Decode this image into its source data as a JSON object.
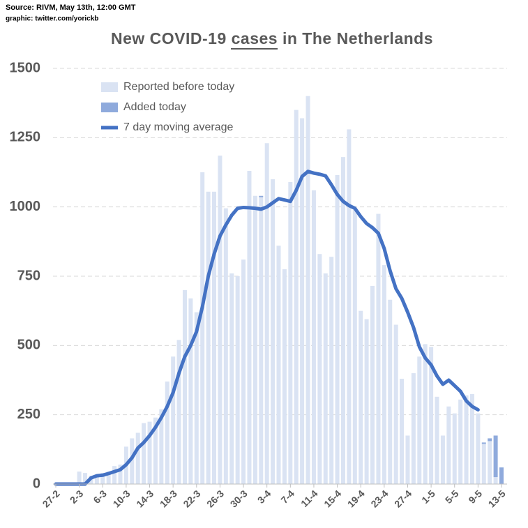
{
  "chart_data": {
    "type": "bar",
    "stacked": true,
    "source": "Source: RIVM, May 13th, 12:00 GMT",
    "credit": "graphic: twitter.com/yorickb",
    "title": "New COVID-19 cases in The Netherlands",
    "categories": [
      "27-2",
      null,
      null,
      null,
      "2-3",
      null,
      null,
      null,
      "6-3",
      null,
      null,
      null,
      "10-3",
      null,
      null,
      null,
      "14-3",
      null,
      null,
      null,
      "18-3",
      null,
      null,
      null,
      "22-3",
      null,
      null,
      null,
      "26-3",
      null,
      null,
      null,
      "30-3",
      null,
      null,
      null,
      "3-4",
      null,
      null,
      null,
      "7-4",
      null,
      null,
      null,
      "11-4",
      null,
      null,
      null,
      "15-4",
      null,
      null,
      null,
      "19-4",
      null,
      null,
      null,
      "23-4",
      null,
      null,
      null,
      "27-4",
      null,
      null,
      null,
      "1-5",
      null,
      null,
      null,
      "5-5",
      null,
      null,
      null,
      "9-5",
      null,
      null,
      null,
      "13-5"
    ],
    "series": [
      {
        "name": "Reported before today",
        "type": "bar",
        "color": "#dae3f3",
        "values": [
          2,
          2,
          2,
          3,
          45,
          40,
          30,
          30,
          40,
          45,
          65,
          70,
          135,
          165,
          185,
          220,
          225,
          240,
          270,
          370,
          460,
          520,
          700,
          670,
          620,
          1125,
          1055,
          1055,
          1185,
          995,
          760,
          750,
          810,
          1130,
          1040,
          1035,
          1230,
          1100,
          860,
          775,
          1090,
          1350,
          1320,
          1400,
          1060,
          830,
          760,
          820,
          1115,
          1180,
          1280,
          990,
          625,
          595,
          715,
          975,
          790,
          665,
          575,
          380,
          175,
          400,
          460,
          505,
          495,
          315,
          175,
          280,
          255,
          305,
          320,
          325,
          255,
          145,
          155,
          25,
          0
        ]
      },
      {
        "name": "Added today",
        "type": "bar",
        "color": "#8faadc",
        "values": [
          0,
          0,
          0,
          0,
          0,
          0,
          0,
          0,
          0,
          0,
          0,
          0,
          0,
          0,
          0,
          0,
          0,
          0,
          0,
          0,
          0,
          0,
          0,
          0,
          0,
          0,
          0,
          0,
          0,
          0,
          0,
          0,
          0,
          0,
          0,
          5,
          0,
          0,
          0,
          0,
          0,
          0,
          0,
          0,
          0,
          0,
          0,
          0,
          0,
          0,
          0,
          0,
          0,
          0,
          0,
          0,
          0,
          0,
          0,
          0,
          0,
          0,
          0,
          0,
          0,
          0,
          0,
          0,
          0,
          0,
          0,
          0,
          0,
          5,
          10,
          150,
          60
        ]
      },
      {
        "name": "7 day moving average",
        "type": "line",
        "color": "#4472c4",
        "values": [
          0,
          0,
          0,
          0,
          0,
          0,
          22,
          30,
          32,
          38,
          45,
          52,
          70,
          95,
          130,
          150,
          175,
          205,
          240,
          280,
          330,
          400,
          460,
          500,
          550,
          640,
          750,
          830,
          895,
          935,
          970,
          995,
          998,
          997,
          995,
          992,
          1000,
          1015,
          1030,
          1025,
          1020,
          1060,
          1110,
          1128,
          1122,
          1118,
          1112,
          1080,
          1045,
          1020,
          1005,
          995,
          965,
          940,
          925,
          905,
          850,
          770,
          705,
          670,
          620,
          565,
          495,
          455,
          430,
          390,
          360,
          375,
          355,
          335,
          300,
          280,
          268,
          null,
          null,
          null,
          null
        ]
      }
    ],
    "ylim": [
      0,
      1500
    ],
    "yticks": [
      0,
      250,
      500,
      750,
      1000,
      1250,
      1500
    ],
    "grid": true
  }
}
